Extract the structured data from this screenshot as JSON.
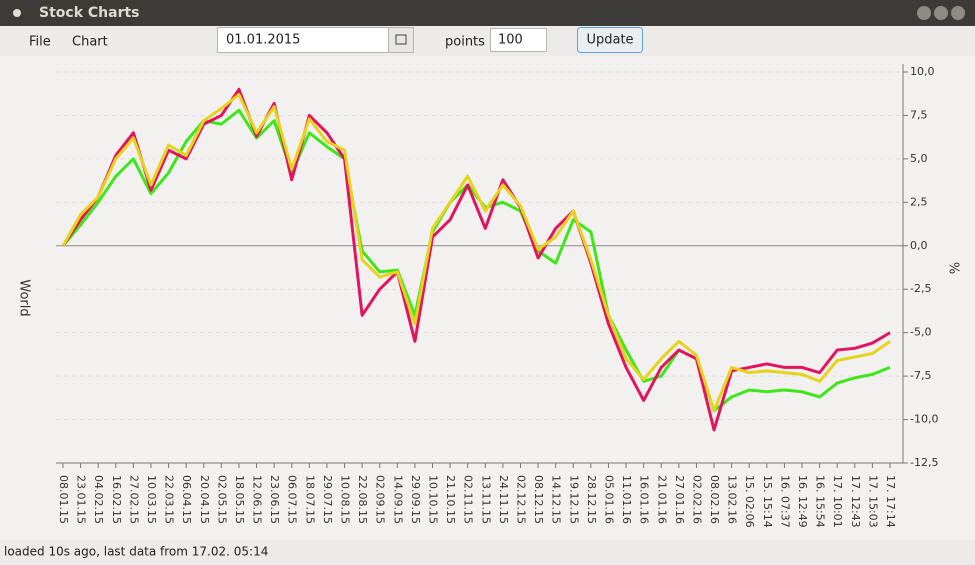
{
  "ui": {
    "window_title": "Stock Charts",
    "menu": [
      "File",
      "Chart"
    ],
    "date_field": "01.01.2015",
    "points_label": "points",
    "points_field": "100",
    "update_button": "Update",
    "status": "loaded 10s ago, last data from 17.02. 05:14"
  },
  "chart_data": {
    "type": "line",
    "y_label": "World",
    "y2_label": "%",
    "categories": [
      "08.01.15",
      "23.01.15",
      "04.02.15",
      "16.02.15",
      "27.02.15",
      "10.03.15",
      "22.03.15",
      "06.04.15",
      "20.04.15",
      "02.05.15",
      "18.05.15",
      "12.06.15",
      "23.06.15",
      "06.07.15",
      "18.07.15",
      "29.07.15",
      "10.08.15",
      "22.08.15",
      "02.09.15",
      "14.09.15",
      "29.09.15",
      "10.10.15",
      "21.10.15",
      "02.11.15",
      "13.11.15",
      "24.11.15",
      "02.12.15",
      "08.12.15",
      "14.12.15",
      "19.12.15",
      "28.12.15",
      "05.01.16",
      "11.01.16",
      "16.01.16",
      "21.01.16",
      "27.01.16",
      "02.02.16",
      "08.02.16",
      "13.02.16",
      "15. 02:06",
      "15. 15:14",
      "16. 07:37",
      "16. 12:49",
      "16. 15:54",
      "17. 10:01",
      "17. 12:43",
      "17. 15:03",
      "17. 17:14"
    ],
    "series": [
      {
        "color": "#3ee61a",
        "values": [
          0,
          1.2,
          2.5,
          4.0,
          5.0,
          3.0,
          4.2,
          6.0,
          7.2,
          7.0,
          7.8,
          6.2,
          7.2,
          4.2,
          6.5,
          5.7,
          5.0,
          -0.3,
          -1.5,
          -1.4,
          -4.0,
          0.8,
          2.5,
          3.5,
          2.2,
          2.5,
          2.0,
          -0.3,
          -1.0,
          1.5,
          0.8,
          -4.0,
          -6.0,
          -7.8,
          -7.5,
          -6.0,
          -6.5,
          -9.5,
          -8.7,
          -8.3,
          -8.4,
          -8.3,
          -8.4,
          -8.7,
          -7.9,
          -7.6,
          -7.4,
          -7.0
        ]
      },
      {
        "color": "#e3145f",
        "values": [
          0,
          1.5,
          2.8,
          5.2,
          6.5,
          3.2,
          5.5,
          5.0,
          7.0,
          7.5,
          9.0,
          6.3,
          8.2,
          3.8,
          7.5,
          6.5,
          5.0,
          -4.0,
          -2.5,
          -1.5,
          -5.5,
          0.5,
          1.5,
          3.5,
          1.0,
          3.8,
          2.2,
          -0.7,
          1.0,
          2.0,
          -1.0,
          -4.5,
          -7.0,
          -8.9,
          -7.0,
          -6.0,
          -6.5,
          -10.6,
          -7.2,
          -7.0,
          -6.8,
          -7.0,
          -7.0,
          -7.3,
          -6.0,
          -5.9,
          -5.6,
          -5.0
        ]
      },
      {
        "color": "#e6d31c",
        "values": [
          0,
          1.8,
          2.8,
          5.0,
          6.2,
          3.5,
          5.8,
          5.2,
          7.2,
          7.9,
          8.7,
          6.5,
          8.0,
          4.4,
          7.3,
          6.0,
          5.5,
          -0.8,
          -1.8,
          -1.5,
          -4.5,
          1.0,
          2.5,
          4.0,
          2.0,
          3.5,
          2.3,
          -0.2,
          0.5,
          2.0,
          -0.8,
          -4.0,
          -6.5,
          -7.7,
          -6.5,
          -5.5,
          -6.3,
          -9.5,
          -7.0,
          -7.3,
          -7.2,
          -7.3,
          -7.4,
          -7.8,
          -6.6,
          -6.4,
          -6.2,
          -5.5
        ]
      }
    ],
    "ylim": [
      -12.5,
      10
    ],
    "yticks": [
      {
        "value": 10,
        "label": "10,0"
      },
      {
        "value": 7.5,
        "label": "7,5"
      },
      {
        "value": 5,
        "label": "5,0"
      },
      {
        "value": 2.5,
        "label": "2,5"
      },
      {
        "value": 0,
        "label": "0,0"
      },
      {
        "value": -2.5,
        "label": "-2,5"
      },
      {
        "value": -5,
        "label": "-5,0"
      },
      {
        "value": -7.5,
        "label": "-7,5"
      },
      {
        "value": -10,
        "label": "-10,0"
      },
      {
        "value": -12.5,
        "label": "-12,5"
      }
    ],
    "grid": true
  }
}
